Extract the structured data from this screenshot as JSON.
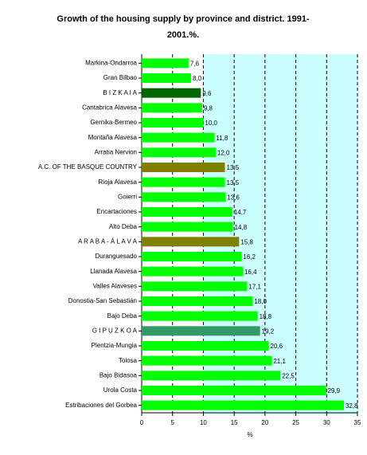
{
  "chart_data": {
    "type": "hbar",
    "title": "Growth of the housing supply by province and district. 1991-2001.%.",
    "x_label": "%",
    "categories": [
      "Markina-Ondarroa",
      "Gran Bilbao",
      "B I Z K A I A",
      "Cantabrica Alavesa",
      "Gernika-Bermeo",
      "Montaña Alavesa",
      "Arratia Nervion",
      "A.C. OF THE BASQUE COUNTRY",
      "Rioja Alavesa",
      "Goierri",
      "Encartaciones",
      "Alto Deba",
      "A R A B A - Á L A V A",
      "Duranguesado",
      "Llanada Alavesa",
      "Valles Alaveses",
      "Donostia-San Sebastián",
      "Bajo Deba",
      "G I P U Z K O A",
      "Plentzia-Mungia",
      "Tolosa",
      "Bajo Bidasoa",
      "Urola Costa",
      "Estribaciones del Gorbea"
    ],
    "values": [
      7.6,
      8.0,
      9.6,
      9.8,
      10.0,
      11.8,
      12.0,
      13.5,
      13.5,
      13.6,
      14.7,
      14.8,
      15.8,
      16.2,
      16.4,
      17.1,
      18.0,
      18.8,
      19.2,
      20.6,
      21.1,
      22.5,
      29.9,
      32.8
    ],
    "value_labels": [
      "7,6",
      "8,0",
      "9,6",
      "9,8",
      "10,0",
      "11,8",
      "12,0",
      "13,5",
      "13,5",
      "13,6",
      "14,7",
      "14,8",
      "15,8",
      "16,2",
      "16,4",
      "17,1",
      "18,0",
      "18,8",
      "19,2",
      "20,6",
      "21,1",
      "22,5",
      "29,9",
      "32,8"
    ],
    "colors": [
      "#00ff00",
      "#00ff00",
      "#006600",
      "#00ff00",
      "#00ff00",
      "#00ff00",
      "#00ff00",
      "#808000",
      "#00ff00",
      "#00ff00",
      "#00ff00",
      "#00ff00",
      "#808000",
      "#00ff00",
      "#00ff00",
      "#00ff00",
      "#00ff00",
      "#00ff00",
      "#339966",
      "#00ff00",
      "#00ff00",
      "#00ff00",
      "#00ff00",
      "#00ff00"
    ],
    "xlim": [
      0,
      35
    ],
    "xticks": [
      0,
      5,
      10,
      15,
      20,
      25,
      30,
      35
    ],
    "grid": true
  }
}
